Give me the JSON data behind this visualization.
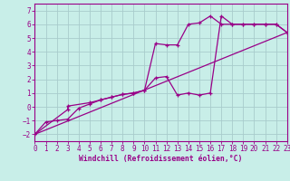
{
  "bg_color": "#c8eee8",
  "grid_color": "#a8cccc",
  "line_color": "#990088",
  "xlabel": "Windchill (Refroidissement éolien,°C)",
  "xlim": [
    0,
    23
  ],
  "ylim": [
    -2.5,
    7.5
  ],
  "xticks": [
    0,
    1,
    2,
    3,
    4,
    5,
    6,
    7,
    8,
    9,
    10,
    11,
    12,
    13,
    14,
    15,
    16,
    17,
    18,
    19,
    20,
    21,
    22,
    23
  ],
  "yticks": [
    -2,
    -1,
    0,
    1,
    2,
    3,
    4,
    5,
    6,
    7
  ],
  "line1_x": [
    0,
    1,
    2,
    3,
    4,
    5,
    6,
    7,
    8,
    9,
    10,
    11,
    12,
    13,
    14,
    15,
    16,
    17,
    18,
    19,
    20,
    21,
    22,
    23
  ],
  "line1_y": [
    -2,
    -1.1,
    -1.0,
    -0.9,
    -0.1,
    0.2,
    0.5,
    0.7,
    0.9,
    1.0,
    1.2,
    4.6,
    4.5,
    4.5,
    6.0,
    6.1,
    6.6,
    6.0,
    6.0,
    6.0,
    6.0,
    6.0,
    6.0,
    5.4
  ],
  "line2_x": [
    0,
    3,
    3,
    5,
    6,
    7,
    8,
    9,
    10,
    11,
    12,
    13,
    14,
    15,
    16,
    17,
    18,
    19,
    20,
    21,
    22,
    23
  ],
  "line2_y": [
    -2,
    -0.2,
    0.05,
    0.3,
    0.5,
    0.7,
    0.9,
    1.0,
    1.2,
    2.1,
    2.2,
    0.85,
    1.0,
    0.85,
    1.0,
    6.6,
    6.0,
    6.0,
    6.0,
    6.0,
    6.0,
    5.4
  ],
  "line3_x": [
    0,
    23
  ],
  "line3_y": [
    -2,
    5.4
  ],
  "tick_fontsize": 5.5,
  "xlabel_fontsize": 5.8
}
